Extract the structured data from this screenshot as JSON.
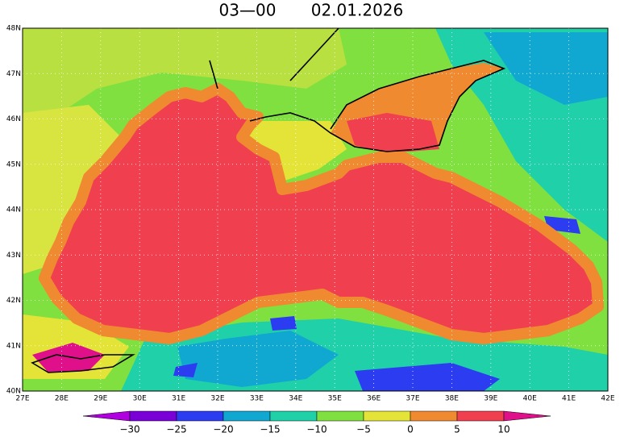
{
  "header": {
    "time": "03—00",
    "date": "02.01.2026"
  },
  "map": {
    "lat_labels": [
      "48N",
      "47N",
      "46N",
      "45N",
      "44N",
      "43N",
      "42N",
      "41N",
      "40N"
    ],
    "lon_labels": [
      "27E",
      "28E",
      "29E",
      "30E",
      "31E",
      "32E",
      "33E",
      "34E",
      "35E",
      "36E",
      "37E",
      "38E",
      "39E",
      "40E",
      "41E",
      "42E"
    ]
  },
  "colorbar": {
    "labels": [
      "−30",
      "−25",
      "−20",
      "−15",
      "−10",
      "−5",
      "0",
      "5",
      "10"
    ],
    "colors": [
      "#b000e0",
      "#7a00d8",
      "#2c3cf0",
      "#10a8d0",
      "#20d0a8",
      "#80e040",
      "#e4e438",
      "#f08a30",
      "#f04050",
      "#e0108a"
    ]
  }
}
